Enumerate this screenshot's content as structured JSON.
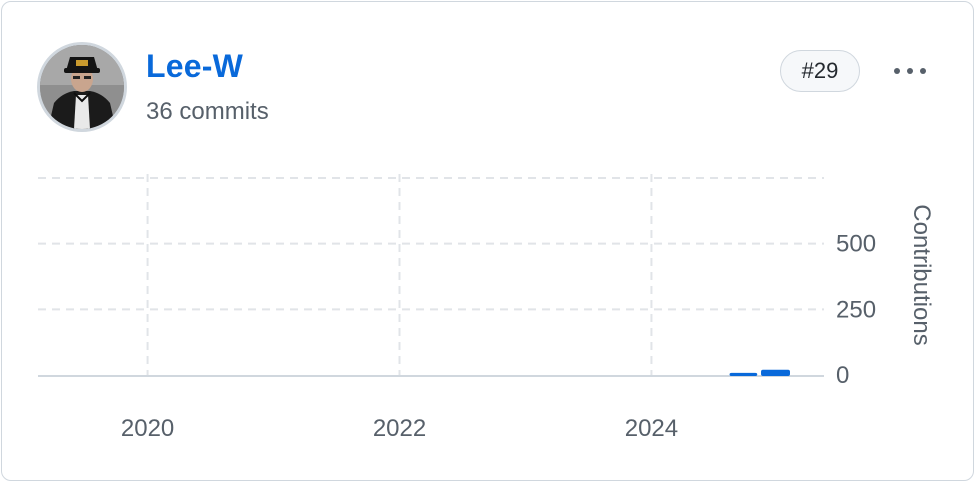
{
  "user": {
    "name": "Lee-W",
    "commits": "36 commits",
    "rank": "#29"
  },
  "colors": {
    "accent": "#0969da",
    "muted_text": "#57606a",
    "border": "#d0d7de",
    "grid": "#e1e4e8"
  },
  "icons": {
    "avatar": "user-avatar-photo",
    "more": "kebab-horizontal-icon"
  },
  "chart_data": {
    "type": "bar",
    "title": "",
    "xlabel": "",
    "ylabel": "Contributions",
    "x_ticks": [
      "2020",
      "2022",
      "2024"
    ],
    "x_tick_years": [
      2020,
      2022,
      2024
    ],
    "xlim_years": [
      2019.13,
      2025.37
    ],
    "y_ticks": [
      "0",
      "250",
      "500"
    ],
    "y_tick_values": [
      0,
      250,
      500
    ],
    "ylim": [
      0,
      765
    ],
    "grid": true,
    "y_axis_side": "right",
    "bars": [
      {
        "start_year": 2024.62,
        "end_year": 2024.84,
        "value": 8
      },
      {
        "start_year": 2024.87,
        "end_year": 2025.1,
        "value": 20
      }
    ]
  }
}
